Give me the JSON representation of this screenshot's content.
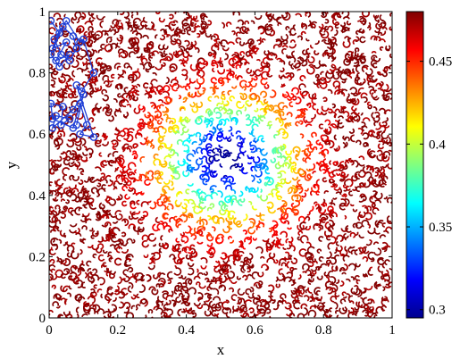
{
  "chart_data": {
    "type": "scatter",
    "title": "",
    "xlabel": "x",
    "ylabel": "y",
    "xlim": [
      0,
      1
    ],
    "ylim": [
      0,
      1
    ],
    "x_ticks": [
      {
        "value": 0,
        "label": "0"
      },
      {
        "value": 0.2,
        "label": "0.2"
      },
      {
        "value": 0.4,
        "label": "0.4"
      },
      {
        "value": 0.6,
        "label": "0.6"
      },
      {
        "value": 0.8,
        "label": "0.8"
      },
      {
        "value": 1,
        "label": "1"
      }
    ],
    "y_ticks": [
      {
        "value": 0,
        "label": "0"
      },
      {
        "value": 0.2,
        "label": "0.2"
      },
      {
        "value": 0.4,
        "label": "0.4"
      },
      {
        "value": 0.6,
        "label": "0.6"
      },
      {
        "value": 0.8,
        "label": "0.8"
      },
      {
        "value": 1,
        "label": "1"
      }
    ],
    "field": {
      "description_of_values": "contour field, minimum near center",
      "center": [
        0.52,
        0.52
      ],
      "min_value": 0.29,
      "max_value": 0.48,
      "colormap": "jet"
    },
    "colorbar": {
      "clim": [
        0.295,
        0.48
      ],
      "ticks": [
        {
          "value": 0.3,
          "label": "0.3"
        },
        {
          "value": 0.35,
          "label": "0.35"
        },
        {
          "value": 0.4,
          "label": "0.4"
        },
        {
          "value": 0.45,
          "label": "0.45"
        }
      ]
    },
    "path_series": {
      "color": "#1f3fd6",
      "marker": "circle",
      "points": [
        [
          0.005,
          0.97
        ],
        [
          0.03,
          0.93
        ],
        [
          0.01,
          0.88
        ],
        [
          0.05,
          0.9
        ],
        [
          0.02,
          0.84
        ],
        [
          0.06,
          0.86
        ],
        [
          0.03,
          0.82
        ],
        [
          0.005,
          0.86
        ],
        [
          0.04,
          0.95
        ],
        [
          0.07,
          0.92
        ],
        [
          0.08,
          0.88
        ],
        [
          0.06,
          0.84
        ],
        [
          0.035,
          0.86
        ],
        [
          0.015,
          0.91
        ],
        [
          0.05,
          0.97
        ],
        [
          0.09,
          0.9
        ],
        [
          0.1,
          0.91
        ],
        [
          0.13,
          0.8
        ],
        [
          0.095,
          0.74
        ],
        [
          0.08,
          0.76
        ],
        [
          0.13,
          0.59
        ],
        [
          0.09,
          0.6
        ],
        [
          0.11,
          0.63
        ],
        [
          0.09,
          0.7
        ],
        [
          0.07,
          0.62
        ],
        [
          0.01,
          0.65
        ],
        [
          0.005,
          0.7
        ],
        [
          0.04,
          0.69
        ],
        [
          0.035,
          0.63
        ],
        [
          0.06,
          0.65
        ],
        [
          0.02,
          0.66
        ],
        [
          0.01,
          0.62
        ],
        [
          0.07,
          0.68
        ],
        [
          0.1,
          0.73
        ],
        [
          0.08,
          0.63
        ]
      ]
    }
  },
  "colors": {
    "jet": [
      "#00008f",
      "#0000ff",
      "#0080ff",
      "#00ffff",
      "#80ff80",
      "#ffff00",
      "#ff8000",
      "#ff0000",
      "#800000"
    ],
    "path": "#1f3fd6"
  }
}
